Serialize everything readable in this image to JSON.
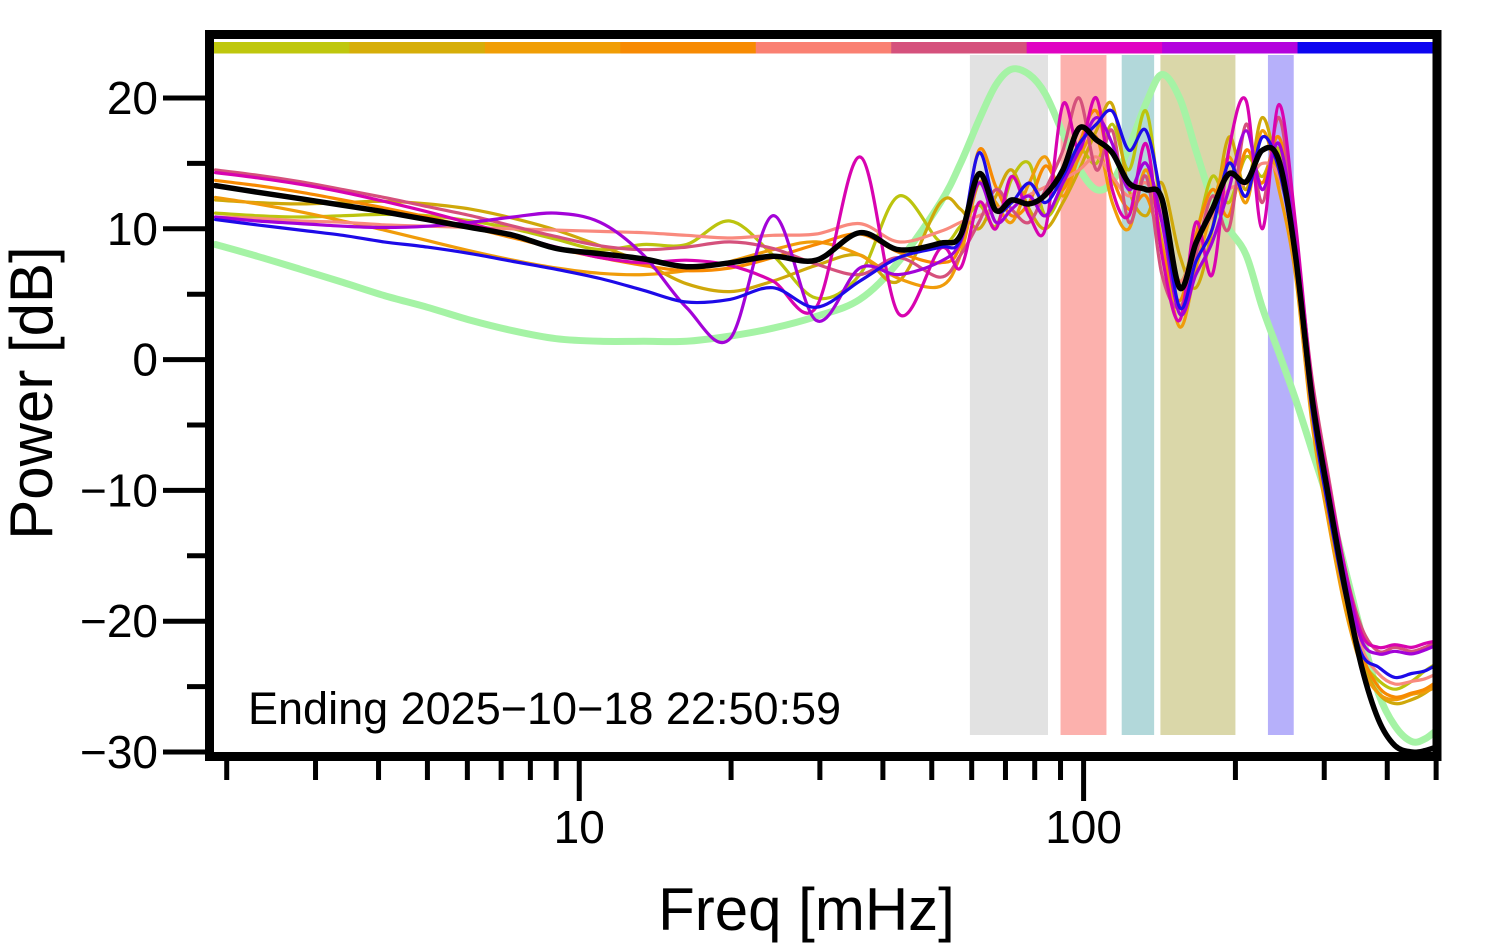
{
  "figure": {
    "annotation": "Ending 2025−10−18 22:50:59"
  },
  "chart_data": {
    "type": "line",
    "title": "",
    "xlabel": "Freq [mHz]",
    "ylabel": "Power [dB]",
    "xscale": "log",
    "xlim": [
      1.87,
      502
    ],
    "ylim": [
      -30,
      24.5
    ],
    "grid": false,
    "legend": "none",
    "annotation": "Ending 2025−10−18 22:50:59",
    "x_axis": {
      "major_ticks": [
        10,
        100
      ],
      "major_tick_labels": [
        "10",
        "100"
      ],
      "minor_ticks": [
        2,
        3,
        4,
        5,
        6,
        7,
        8,
        9,
        20,
        30,
        40,
        50,
        60,
        70,
        80,
        90,
        200,
        300,
        400,
        500
      ]
    },
    "y_axis": {
      "major_ticks": [
        20,
        10,
        0,
        -10,
        -20,
        -30
      ],
      "major_tick_labels": [
        "20",
        "10",
        "0",
        "−10",
        "−20",
        "−30"
      ],
      "minor_ticks": [
        15,
        5,
        -5,
        -15,
        -25
      ]
    },
    "top_color_bar": {
      "description": "nine equal time segments, left to right",
      "segment_colors": [
        "#bfc70d",
        "#d6ae09",
        "#f09e06",
        "#f78a02",
        "#fa8072",
        "#d5517c",
        "#e003c2",
        "#b303dd",
        "#0d06f0"
      ]
    },
    "shaded_bands": [
      {
        "f_start": 59.5,
        "f_end": 85,
        "color": "#e2e2e2"
      },
      {
        "f_start": 90,
        "f_end": 111,
        "color": "#fcb1ad"
      },
      {
        "f_start": 119,
        "f_end": 138,
        "color": "#b2d8da"
      },
      {
        "f_start": 142,
        "f_end": 200,
        "color": "#dad7a9"
      },
      {
        "f_start": 232,
        "f_end": 261,
        "color": "#b6b0fa"
      }
    ],
    "freqs_mHz": [
      1.9,
      2.3,
      2.8,
      3.4,
      4.1,
      5.0,
      6.1,
      7.4,
      9.0,
      11.0,
      13.4,
      16.3,
      19.9,
      24.2,
      29.5,
      36.0,
      43.0,
      52.0,
      57.0,
      62.0,
      67.0,
      72.0,
      78.0,
      84.0,
      91.0,
      98.0,
      106.0,
      114.0,
      123.0,
      133.0,
      143.0,
      155.0,
      167.0,
      180.0,
      194.0,
      210.0,
      226.0,
      244.0,
      263.0,
      284.0,
      306.0,
      330.0,
      356.0,
      384.0,
      414.0,
      447.0,
      475.0,
      502.0
    ],
    "series": [
      {
        "name": "pale-green-reference",
        "color": "#a5f3a5",
        "width": 7,
        "values": [
          8.8,
          7.9,
          6.9,
          5.9,
          4.9,
          4.0,
          3.0,
          2.2,
          1.6,
          1.4,
          1.4,
          1.4,
          1.8,
          2.4,
          3.3,
          4.6,
          7.5,
          12.0,
          15.0,
          18.3,
          21.0,
          22.2,
          21.8,
          20.3,
          17.3,
          14.6,
          13.0,
          13.6,
          16.2,
          19.6,
          21.8,
          20.0,
          16.0,
          12.2,
          10.0,
          8.0,
          4.0,
          0.5,
          -3.0,
          -7.0,
          -11.0,
          -16.0,
          -21.0,
          -25.5,
          -28.0,
          -29.2,
          -29.0,
          -28.3
        ]
      },
      {
        "name": "spectrum-yellow-green",
        "color": "#bcc40e",
        "width": 3.2,
        "values": [
          11.2,
          11.0,
          10.9,
          11.0,
          11.1,
          11.0,
          10.6,
          10.0,
          9.2,
          8.4,
          8.8,
          8.8,
          10.6,
          8.0,
          4.7,
          6.5,
          12.5,
          9.0,
          10.2,
          11.8,
          10.2,
          13.8,
          15.0,
          11.0,
          13.0,
          16.0,
          15.0,
          18.0,
          14.5,
          19.0,
          11.0,
          6.0,
          9.5,
          14.0,
          12.0,
          15.5,
          14.0,
          16.0,
          8.0,
          -4.0,
          -11.5,
          -18.0,
          -22.8,
          -24.5,
          -25.2,
          -24.6,
          -23.8,
          -23.2
        ]
      },
      {
        "name": "spectrum-dark-yellow",
        "color": "#cfa80a",
        "width": 3.2,
        "values": [
          12.2,
          12.0,
          11.9,
          12.0,
          12.1,
          11.9,
          11.5,
          10.8,
          9.9,
          8.7,
          7.4,
          5.8,
          5.2,
          6.0,
          7.2,
          8.0,
          6.0,
          12.0,
          11.5,
          10.0,
          12.5,
          14.5,
          11.5,
          10.0,
          12.0,
          14.5,
          17.5,
          19.5,
          13.0,
          11.0,
          13.5,
          8.0,
          5.5,
          10.0,
          17.0,
          13.0,
          18.5,
          14.0,
          9.0,
          -4.5,
          -12.0,
          -18.5,
          -23.0,
          -25.5,
          -26.3,
          -26.0,
          -25.5,
          -24.8
        ]
      },
      {
        "name": "spectrum-orange",
        "color": "#f09c0a",
        "width": 3.2,
        "values": [
          12.4,
          11.9,
          11.3,
          10.6,
          9.9,
          9.1,
          8.3,
          7.6,
          7.0,
          6.6,
          6.5,
          6.8,
          7.5,
          8.4,
          9.0,
          8.0,
          6.2,
          5.6,
          8.0,
          13.5,
          12.0,
          10.5,
          13.5,
          15.5,
          12.5,
          15.5,
          17.0,
          12.0,
          10.0,
          14.5,
          9.0,
          2.5,
          7.0,
          11.5,
          15.5,
          12.0,
          17.5,
          13.0,
          6.5,
          -5.0,
          -12.5,
          -19.0,
          -23.5,
          -25.5,
          -26.0,
          -25.6,
          -25.4,
          -25.0
        ]
      },
      {
        "name": "spectrum-dark-orange",
        "color": "#f78a02",
        "width": 3.2,
        "values": [
          13.7,
          13.3,
          12.8,
          12.2,
          11.6,
          10.9,
          10.1,
          9.3,
          8.5,
          7.8,
          7.2,
          6.8,
          7.0,
          7.8,
          8.8,
          9.6,
          8.2,
          7.4,
          8.8,
          16.0,
          13.2,
          11.0,
          12.0,
          14.8,
          13.0,
          16.5,
          19.0,
          14.0,
          11.5,
          12.5,
          8.5,
          4.5,
          9.5,
          13.0,
          11.0,
          16.0,
          13.5,
          17.0,
          10.0,
          -3.5,
          -11.0,
          -17.5,
          -22.5,
          -25.0,
          -25.8,
          -25.5,
          -25.2,
          -24.6
        ]
      },
      {
        "name": "spectrum-salmon",
        "color": "#f98a7e",
        "width": 3.2,
        "values": [
          10.9,
          10.8,
          10.6,
          10.5,
          10.3,
          10.2,
          10.1,
          10.0,
          9.9,
          9.8,
          9.7,
          9.5,
          9.3,
          9.5,
          9.6,
          10.4,
          9.0,
          9.8,
          10.5,
          11.0,
          11.5,
          12.0,
          12.6,
          13.2,
          13.8,
          14.5,
          15.5,
          14.0,
          12.5,
          13.5,
          11.0,
          6.0,
          9.0,
          11.0,
          13.0,
          13.5,
          15.0,
          14.0,
          8.5,
          -3.0,
          -10.5,
          -17.0,
          -22.0,
          -24.0,
          -24.8,
          -24.6,
          -24.4,
          -24.0
        ]
      },
      {
        "name": "spectrum-dark-pink",
        "color": "#d5517c",
        "width": 3.2,
        "values": [
          14.5,
          14.1,
          13.6,
          13.0,
          12.4,
          11.7,
          11.0,
          10.2,
          9.4,
          8.7,
          8.4,
          8.6,
          9.0,
          8.5,
          7.3,
          6.5,
          7.8,
          6.3,
          8.0,
          10.5,
          13.0,
          11.5,
          10.5,
          13.0,
          16.0,
          20.0,
          14.5,
          17.5,
          10.5,
          14.0,
          6.5,
          4.0,
          8.0,
          12.5,
          10.0,
          18.0,
          12.0,
          18.5,
          9.5,
          -1.5,
          -9.0,
          -16.0,
          -20.5,
          -22.3,
          -22.0,
          -22.3,
          -22.0,
          -21.6
        ]
      },
      {
        "name": "spectrum-magenta",
        "color": "#d803b0",
        "width": 3.2,
        "values": [
          14.3,
          13.9,
          13.4,
          12.8,
          12.1,
          11.3,
          10.4,
          9.5,
          8.6,
          7.8,
          7.4,
          7.6,
          7.2,
          6.0,
          4.0,
          15.5,
          3.5,
          8.5,
          7.0,
          12.0,
          10.0,
          14.0,
          11.0,
          10.0,
          19.5,
          16.0,
          20.0,
          13.0,
          11.0,
          16.5,
          8.0,
          3.0,
          10.5,
          6.5,
          16.0,
          19.8,
          10.0,
          19.5,
          10.5,
          -2.0,
          -9.5,
          -16.0,
          -21.0,
          -22.0,
          -21.8,
          -22.0,
          -21.7,
          -21.5
        ]
      },
      {
        "name": "spectrum-purple",
        "color": "#a303d8",
        "width": 3.2,
        "values": [
          10.9,
          10.6,
          10.4,
          10.2,
          10.1,
          10.2,
          10.5,
          10.9,
          11.2,
          10.5,
          8.0,
          4.0,
          1.6,
          11.0,
          3.0,
          7.0,
          6.5,
          7.5,
          9.0,
          13.5,
          10.5,
          11.5,
          12.5,
          11.0,
          13.5,
          16.0,
          18.5,
          16.5,
          13.0,
          15.0,
          10.5,
          3.5,
          6.5,
          9.0,
          13.0,
          17.5,
          13.0,
          16.5,
          9.0,
          -2.5,
          -10.0,
          -16.5,
          -21.5,
          -22.5,
          -22.3,
          -22.5,
          -22.2,
          -21.8
        ]
      },
      {
        "name": "spectrum-blue",
        "color": "#1d0ae8",
        "width": 3.2,
        "values": [
          10.7,
          10.3,
          9.9,
          9.5,
          9.0,
          8.6,
          8.1,
          7.5,
          6.9,
          6.2,
          5.3,
          4.4,
          4.6,
          5.5,
          4.0,
          6.0,
          7.8,
          8.6,
          9.2,
          15.8,
          11.5,
          12.0,
          13.5,
          12.0,
          14.0,
          16.5,
          18.0,
          19.0,
          16.0,
          17.5,
          12.0,
          4.0,
          7.5,
          10.0,
          15.0,
          12.5,
          17.0,
          14.5,
          7.5,
          -4.0,
          -11.5,
          -18.0,
          -22.5,
          -23.5,
          -24.3,
          -24.0,
          -23.8,
          -23.3
        ]
      },
      {
        "name": "black-mean",
        "color": "#000000",
        "width": 5.5,
        "values": [
          13.3,
          12.8,
          12.3,
          11.8,
          11.3,
          10.7,
          10.1,
          9.5,
          8.5,
          8.1,
          7.7,
          7.1,
          7.4,
          7.9,
          7.6,
          9.7,
          8.4,
          8.9,
          9.5,
          14.2,
          11.4,
          12.2,
          11.9,
          12.6,
          14.5,
          17.7,
          16.8,
          15.8,
          13.5,
          13.0,
          12.3,
          5.5,
          8.9,
          11.5,
          14.2,
          13.6,
          16.0,
          15.2,
          8.0,
          -3.0,
          -10.5,
          -17.5,
          -23.5,
          -27.5,
          -29.5,
          -30.0,
          -29.9,
          -29.6
        ]
      }
    ]
  }
}
